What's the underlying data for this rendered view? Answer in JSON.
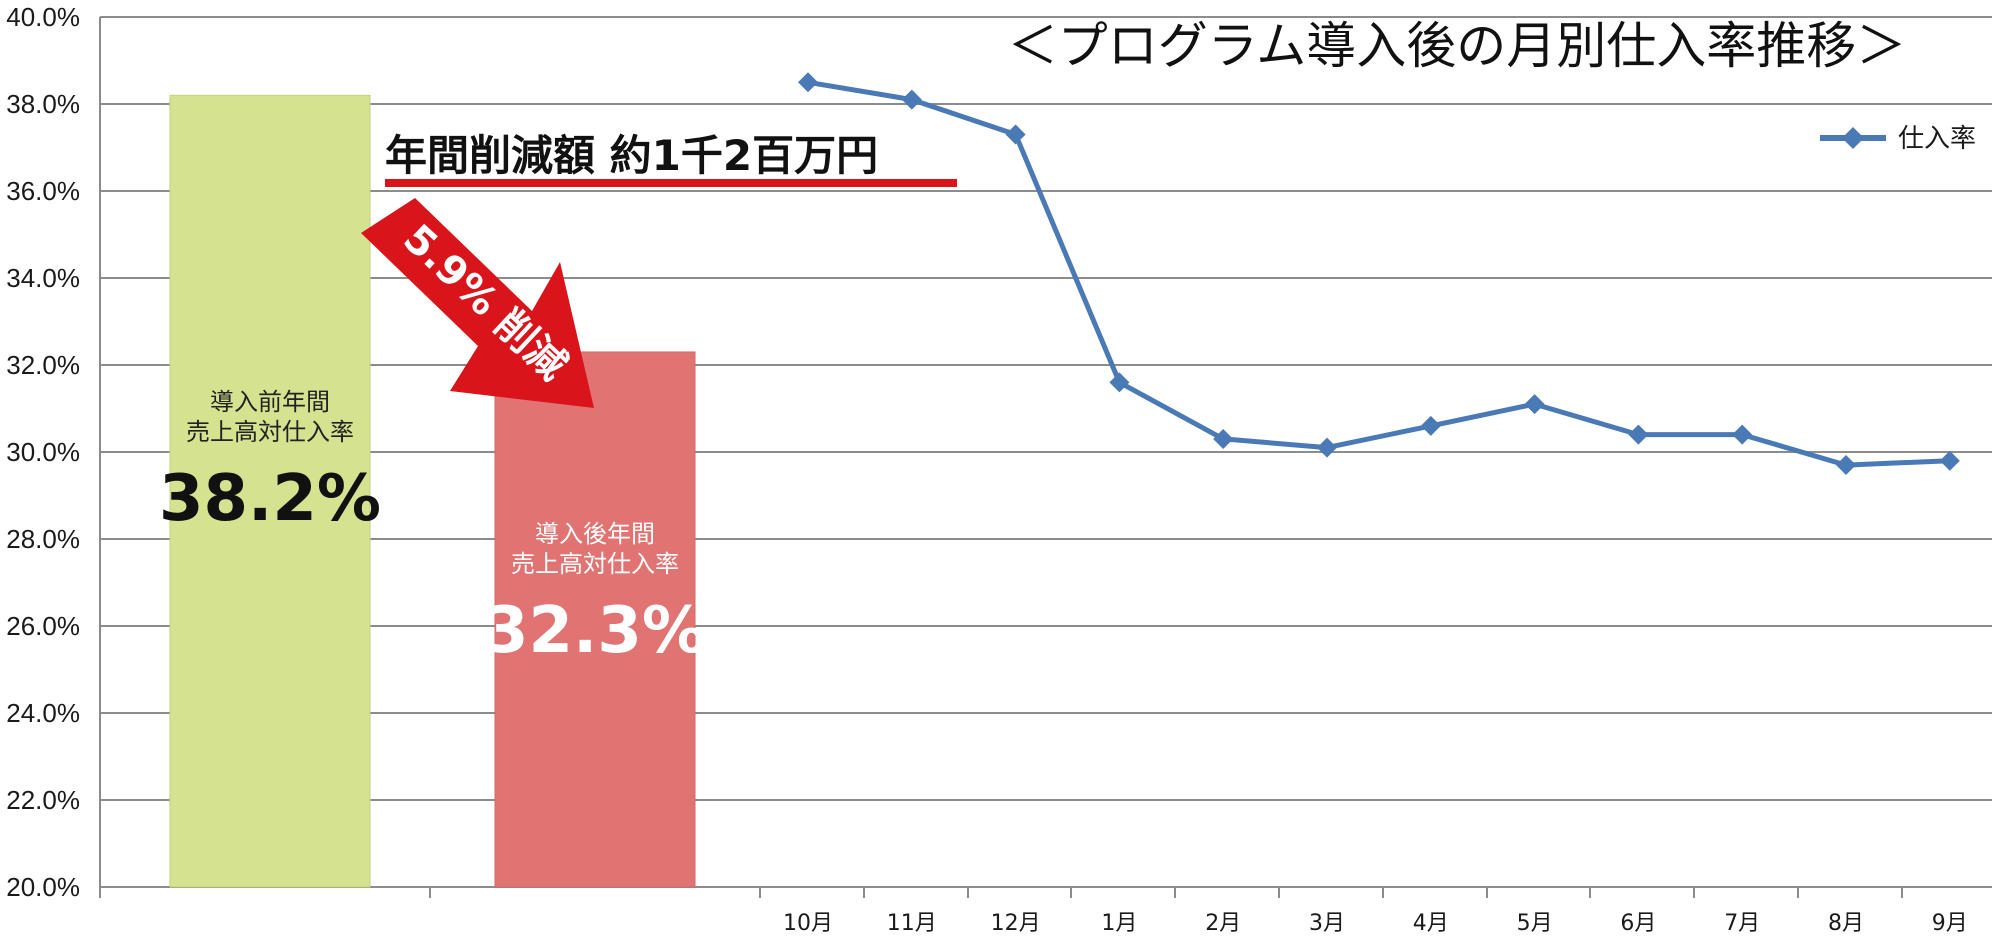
{
  "chart_data": [
    {
      "type": "bar",
      "categories": [
        "導入前",
        "導入後"
      ],
      "values": [
        38.2,
        32.3
      ],
      "colors": [
        "#d5e28f",
        "#e17373"
      ],
      "bar_labels": [
        {
          "line1": "導入前年間",
          "line2": "売上高対仕入率",
          "value_label": "38.2%"
        },
        {
          "line1": "導入後年間",
          "line2": "売上高対仕入率",
          "value_label": "32.3%"
        }
      ],
      "ylim": [
        20.0,
        40.0
      ],
      "yticks": [
        "40.0%",
        "38.0%",
        "36.0%",
        "34.0%",
        "32.0%",
        "30.0%",
        "28.0%",
        "26.0%",
        "24.0%",
        "22.0%",
        "20.0%"
      ]
    },
    {
      "type": "line",
      "title": "＜プログラム導入後の月別仕入率推移＞",
      "categories": [
        "10月",
        "11月",
        "12月",
        "1月",
        "2月",
        "3月",
        "4月",
        "5月",
        "6月",
        "7月",
        "8月",
        "9月"
      ],
      "series": [
        {
          "name": "仕入率",
          "values": [
            38.5,
            38.1,
            37.3,
            31.6,
            30.3,
            30.1,
            30.6,
            31.1,
            30.4,
            30.4,
            29.7,
            29.8
          ],
          "color": "#4a7ab5"
        }
      ],
      "ylim": [
        20.0,
        40.0
      ],
      "grid": true,
      "legend": "top-right"
    }
  ],
  "annotations": {
    "savings": "年間削減額 約1千2百万円",
    "reduction": "5.9% 削減",
    "underline_color": "#d9141b",
    "arrow_color": "#d9141b"
  }
}
